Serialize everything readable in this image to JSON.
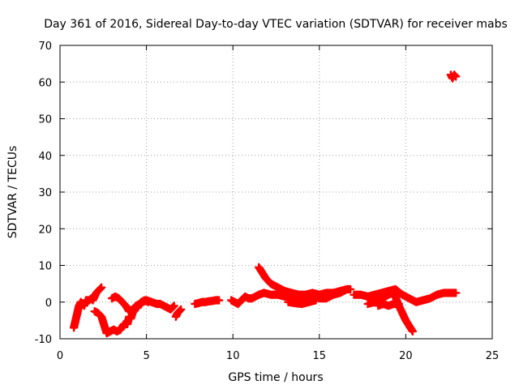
{
  "chart_data": {
    "type": "scatter",
    "title": "Day 361 of 2016, Sidereal Day-to-day VTEC variation (SDTVAR) for receiver mabs",
    "xlabel": "GPS time / hours",
    "ylabel": "SDTVAR / TECUs",
    "xlim": [
      0,
      25
    ],
    "ylim": [
      -10,
      70
    ],
    "xticks": [
      0,
      5,
      10,
      15,
      20,
      25
    ],
    "yticks": [
      -10,
      0,
      10,
      20,
      30,
      40,
      50,
      60,
      70
    ],
    "grid": true,
    "marker": "plus",
    "color": "#ff0000",
    "series": [
      {
        "name": "sdtvar-trace-a",
        "points": [
          [
            0.8,
            -7
          ],
          [
            0.9,
            -5
          ],
          [
            1.0,
            -3
          ],
          [
            1.1,
            -1
          ],
          [
            1.2,
            0
          ],
          [
            1.4,
            -1
          ],
          [
            1.5,
            0.5
          ],
          [
            1.7,
            0.5
          ],
          [
            1.8,
            1
          ],
          [
            1.9,
            0.5
          ],
          [
            2.0,
            1.5
          ],
          [
            2.1,
            2.5
          ],
          [
            2.2,
            3
          ],
          [
            2.3,
            3.5
          ],
          [
            2.4,
            4
          ]
        ]
      },
      {
        "name": "sdtvar-trace-b",
        "points": [
          [
            2.0,
            -2.5
          ],
          [
            2.2,
            -3
          ],
          [
            2.4,
            -4
          ],
          [
            2.6,
            -7
          ],
          [
            2.7,
            -8.5
          ],
          [
            2.9,
            -8
          ],
          [
            3.1,
            -7.5
          ],
          [
            3.3,
            -8
          ],
          [
            3.5,
            -7.5
          ],
          [
            3.7,
            -6
          ],
          [
            3.9,
            -6
          ],
          [
            4.0,
            -4
          ],
          [
            4.1,
            -4.5
          ],
          [
            4.2,
            -3
          ],
          [
            4.3,
            -2
          ],
          [
            4.5,
            -1.5
          ],
          [
            4.6,
            -0.5
          ],
          [
            4.7,
            0
          ],
          [
            4.9,
            0.5
          ],
          [
            5.1,
            0
          ]
        ]
      },
      {
        "name": "sdtvar-trace-c",
        "points": [
          [
            3.0,
            1
          ],
          [
            3.2,
            1.5
          ],
          [
            3.4,
            1
          ],
          [
            3.6,
            0
          ],
          [
            3.8,
            -1
          ],
          [
            4.0,
            -2.5
          ],
          [
            4.2,
            -2
          ],
          [
            4.4,
            -1
          ],
          [
            4.6,
            -0.5
          ],
          [
            4.8,
            0
          ],
          [
            5.0,
            0.5
          ],
          [
            5.3,
            0
          ],
          [
            5.6,
            -0.5
          ],
          [
            5.8,
            -0.5
          ],
          [
            6.0,
            -1
          ],
          [
            6.2,
            -1.5
          ],
          [
            6.4,
            -2
          ],
          [
            6.6,
            -1
          ]
        ]
      },
      {
        "name": "sdtvar-trace-d",
        "points": [
          [
            6.7,
            -4
          ],
          [
            6.8,
            -3
          ],
          [
            6.9,
            -2.5
          ],
          [
            7.0,
            -2
          ]
        ]
      },
      {
        "name": "sdtvar-trace-e",
        "points": [
          [
            7.8,
            -0.5
          ],
          [
            8.0,
            -0.3
          ],
          [
            8.2,
            0
          ],
          [
            8.4,
            0
          ],
          [
            8.6,
            0.2
          ],
          [
            8.8,
            0.3
          ],
          [
            9.0,
            0.5
          ],
          [
            9.2,
            0.5
          ]
        ]
      },
      {
        "name": "sdtvar-trace-f",
        "points": [
          [
            9.9,
            0.5
          ],
          [
            10.1,
            0
          ],
          [
            10.3,
            -0.5
          ],
          [
            10.5,
            0.5
          ],
          [
            10.7,
            1.5
          ],
          [
            10.9,
            1
          ],
          [
            11.1,
            1
          ],
          [
            11.3,
            1.5
          ],
          [
            11.5,
            2
          ],
          [
            11.8,
            2.5
          ],
          [
            12.2,
            2
          ],
          [
            12.6,
            2
          ],
          [
            13.0,
            1.5
          ],
          [
            13.4,
            1.2
          ],
          [
            13.8,
            1
          ],
          [
            14.2,
            1
          ],
          [
            14.6,
            1.5
          ],
          [
            15.0,
            1
          ],
          [
            15.4,
            1
          ],
          [
            15.8,
            2
          ],
          [
            16.2,
            2.5
          ],
          [
            16.6,
            3.5
          ],
          [
            16.8,
            3.5
          ]
        ]
      },
      {
        "name": "sdtvar-trace-g",
        "points": [
          [
            11.5,
            9.5
          ],
          [
            11.7,
            8
          ],
          [
            11.9,
            6.5
          ],
          [
            12.2,
            5
          ],
          [
            12.6,
            4
          ],
          [
            13.0,
            3
          ],
          [
            13.4,
            2.5
          ],
          [
            13.8,
            2
          ],
          [
            14.2,
            2
          ],
          [
            14.6,
            2.5
          ],
          [
            15.0,
            2
          ],
          [
            15.4,
            2.5
          ],
          [
            15.8,
            2.5
          ],
          [
            16.2,
            3
          ],
          [
            16.6,
            3.5
          ]
        ]
      },
      {
        "name": "sdtvar-trace-h",
        "points": [
          [
            13.2,
            0
          ],
          [
            13.6,
            -0.3
          ],
          [
            14.0,
            -0.5
          ],
          [
            14.4,
            0
          ],
          [
            14.8,
            0.5
          ]
        ]
      },
      {
        "name": "sdtvar-trace-i",
        "points": [
          [
            17.0,
            2
          ],
          [
            17.4,
            2
          ],
          [
            17.8,
            1.5
          ],
          [
            18.2,
            2
          ],
          [
            18.6,
            2.5
          ],
          [
            19.0,
            3
          ],
          [
            19.4,
            3.5
          ],
          [
            19.8,
            2
          ],
          [
            20.2,
            1
          ],
          [
            20.6,
            0
          ],
          [
            21.0,
            0.5
          ],
          [
            21.4,
            1
          ],
          [
            21.8,
            2
          ],
          [
            22.2,
            2.5
          ],
          [
            22.6,
            2.5
          ],
          [
            22.9,
            2.5
          ]
        ]
      },
      {
        "name": "sdtvar-trace-j",
        "points": [
          [
            17.8,
            -0.5
          ],
          [
            18.2,
            0
          ],
          [
            18.6,
            1
          ],
          [
            19.0,
            2
          ],
          [
            19.2,
            2.5
          ],
          [
            19.4,
            1.5
          ],
          [
            19.6,
            -1
          ],
          [
            19.8,
            -3
          ],
          [
            20.0,
            -5
          ],
          [
            20.2,
            -6.5
          ],
          [
            20.4,
            -8
          ]
        ]
      },
      {
        "name": "sdtvar-trace-k",
        "points": [
          [
            18.4,
            -1
          ],
          [
            18.7,
            -0.5
          ],
          [
            19.0,
            -1
          ],
          [
            19.3,
            -0.5
          ],
          [
            19.6,
            -0.5
          ]
        ]
      },
      {
        "name": "sdtvar-trace-l",
        "points": [
          [
            22.6,
            62
          ],
          [
            22.7,
            61
          ],
          [
            22.8,
            62
          ],
          [
            22.9,
            61.5
          ]
        ]
      }
    ]
  }
}
